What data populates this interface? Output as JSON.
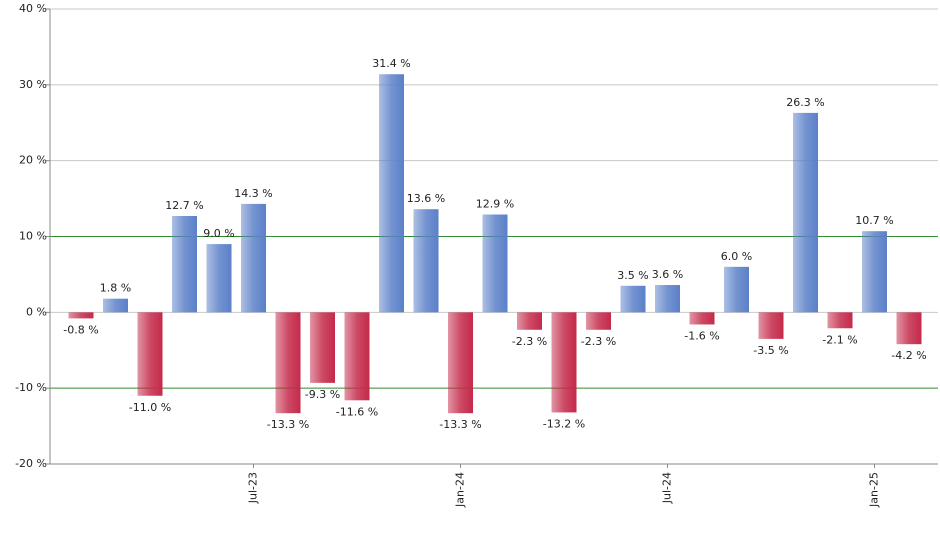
{
  "chart_data": {
    "type": "bar",
    "categories": [
      null,
      null,
      null,
      null,
      null,
      "Jul-23",
      null,
      null,
      null,
      null,
      null,
      "Jan-24",
      null,
      null,
      null,
      null,
      null,
      "Jul-24",
      null,
      null,
      null,
      null,
      null,
      "Jan-25",
      null
    ],
    "values": [
      -0.8,
      1.8,
      -11.0,
      12.7,
      9.0,
      14.3,
      -13.3,
      -9.3,
      -11.6,
      31.4,
      13.6,
      -13.3,
      12.9,
      -2.3,
      -13.2,
      -2.3,
      3.5,
      3.6,
      -1.6,
      6.0,
      -3.5,
      26.3,
      -2.1,
      10.7,
      -4.2
    ],
    "value_labels": [
      "-0.8 %",
      "1.8 %",
      "-11.0 %",
      "12.7 %",
      "9.0 %",
      "14.3 %",
      "-13.3 %",
      "-9.3 %",
      "-11.6 %",
      "31.4 %",
      "13.6 %",
      "-13.3 %",
      "12.9 %",
      "-2.3 %",
      "-13.2 %",
      "-2.3 %",
      "3.5 %",
      "3.6 %",
      "-1.6 %",
      "6.0 %",
      "-3.5 %",
      "26.3 %",
      "-2.1 %",
      "10.7 %",
      "-4.2 %"
    ],
    "color_positive": "#5b80c8",
    "color_negative": "#c42a4a",
    "ylim": [
      -20,
      40
    ],
    "yticks": [
      {
        "value": -20,
        "label": "-20 %"
      },
      {
        "value": -10,
        "label": "-10 %"
      },
      {
        "value": 0,
        "label": "0 %"
      },
      {
        "value": 10,
        "label": "10 %"
      },
      {
        "value": 20,
        "label": "20 %"
      },
      {
        "value": 30,
        "label": "30 %"
      },
      {
        "value": 40,
        "label": "40 %"
      }
    ],
    "grid": true,
    "grid_color": "#c8c8c8",
    "highlight_lines": [
      -10,
      10
    ],
    "highlight_color": "#2e8b2e"
  }
}
